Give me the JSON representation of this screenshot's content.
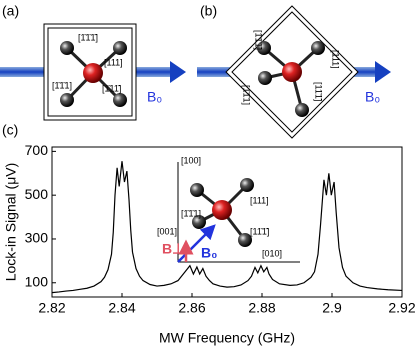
{
  "panels": [
    {
      "label": "(a)",
      "field": "B₀",
      "directions": [
        "[1̄1̄1̄]",
        "[111]",
        "[1̄1̄1]",
        "[1̄11̄]"
      ]
    },
    {
      "label": "(b)",
      "field": "B₀",
      "directions": [
        "[1̄1̄1̄]",
        "[1̄1̄1]",
        "[111]",
        "[11̄1̄]"
      ]
    }
  ],
  "chart_data": {
    "type": "line",
    "panel_label": "(c)",
    "xlabel": "MW Frequency (GHz)",
    "ylabel": "Lock-in Signal (μV)",
    "x": [
      2.82,
      2.822,
      2.824,
      2.826,
      2.828,
      2.83,
      2.832,
      2.834,
      2.835,
      2.836,
      2.837,
      2.8375,
      2.838,
      2.8386,
      2.8392,
      2.84,
      2.8407,
      2.8414,
      2.842,
      2.8425,
      2.843,
      2.844,
      2.845,
      2.846,
      2.848,
      2.85,
      2.852,
      2.854,
      2.856,
      2.857,
      2.858,
      2.8594,
      2.8604,
      2.8614,
      2.8622,
      2.8631,
      2.864,
      2.865,
      2.866,
      2.868,
      2.87,
      2.872,
      2.874,
      2.876,
      2.877,
      2.878,
      2.8788,
      2.8797,
      2.8805,
      2.8814,
      2.882,
      2.883,
      2.885,
      2.888,
      2.89,
      2.892,
      2.894,
      2.895,
      2.896,
      2.8967,
      2.8977,
      2.8984,
      2.8991,
      2.8998,
      2.9006,
      2.9012,
      2.902,
      2.903,
      2.904,
      2.906,
      2.908,
      2.91,
      2.913,
      2.916,
      2.92
    ],
    "series": [
      {
        "color": "#000000",
        "values": [
          55,
          58,
          62,
          65,
          70,
          75,
          85,
          105,
          125,
          160,
          230,
          330,
          500,
          625,
          540,
          655,
          560,
          610,
          480,
          340,
          240,
          165,
          130,
          110,
          92,
          85,
          88,
          95,
          110,
          130,
          150,
          178,
          140,
          172,
          140,
          165,
          130,
          110,
          95,
          85,
          80,
          82,
          90,
          110,
          130,
          170,
          145,
          178,
          150,
          170,
          140,
          115,
          95,
          88,
          90,
          100,
          125,
          150,
          230,
          360,
          570,
          500,
          600,
          500,
          560,
          420,
          260,
          170,
          130,
          100,
          85,
          78,
          72,
          68,
          65
        ]
      }
    ],
    "xlim": [
      2.82,
      2.92
    ],
    "ylim": [
      35,
      720
    ],
    "xticks": [
      2.82,
      2.84,
      2.86,
      2.88,
      2.9,
      2.92
    ],
    "yticks": [
      100,
      300,
      500,
      700
    ],
    "inset": {
      "axes": [
        "[100]",
        "[010]",
        "[001]"
      ],
      "directions": [
        "[1̄1̄1]",
        "[111]",
        "[11̄1̄]"
      ],
      "fields": [
        "B⊥",
        "B₀"
      ]
    }
  }
}
